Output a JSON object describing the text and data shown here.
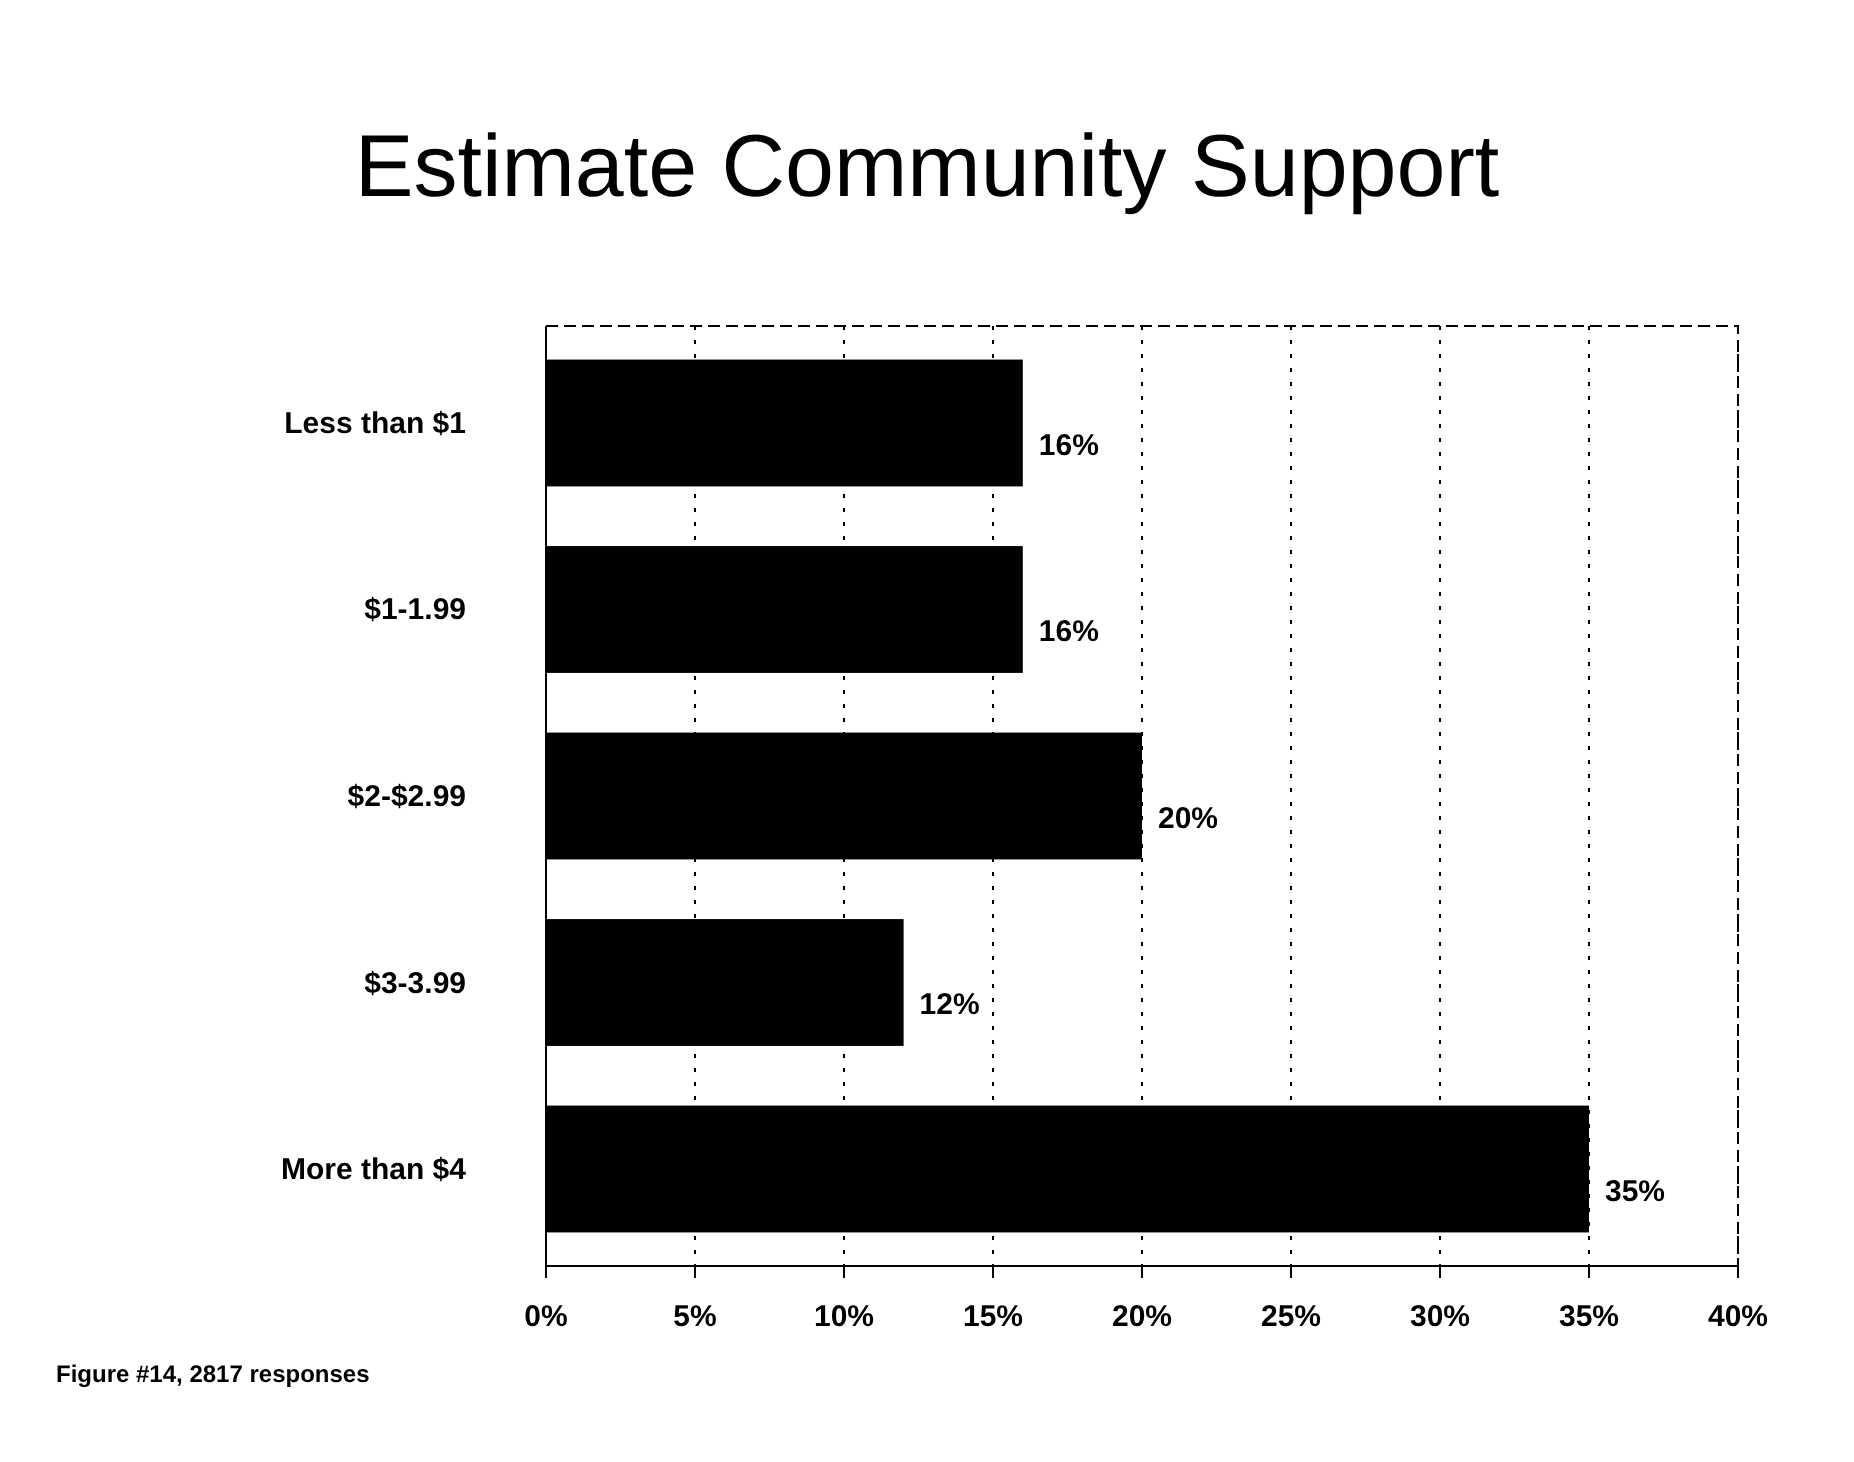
{
  "chart_data": {
    "type": "bar",
    "orientation": "horizontal",
    "title": "Estimate Community Support",
    "categories": [
      "Less than $1",
      "$1-1.99",
      "$2-$2.99",
      "$3-3.99",
      "More than $4"
    ],
    "values": [
      16,
      16,
      20,
      12,
      35
    ],
    "color": "#000000",
    "value_labels": [
      "16%",
      "16%",
      "20%",
      "12%",
      "35%"
    ],
    "xlim": [
      0,
      40
    ],
    "xticks": [
      {
        "value": 0,
        "label": "0%"
      },
      {
        "value": 5,
        "label": "5%"
      },
      {
        "value": 10,
        "label": "10%"
      },
      {
        "value": 15,
        "label": "15%"
      },
      {
        "value": 20,
        "label": "20%"
      },
      {
        "value": 25,
        "label": "25%"
      },
      {
        "value": 30,
        "label": "30%"
      },
      {
        "value": 35,
        "label": "35%"
      },
      {
        "value": 40,
        "label": "40%"
      }
    ],
    "grid": "x",
    "annotations": [
      "Figure #14, 2817 responses"
    ]
  }
}
